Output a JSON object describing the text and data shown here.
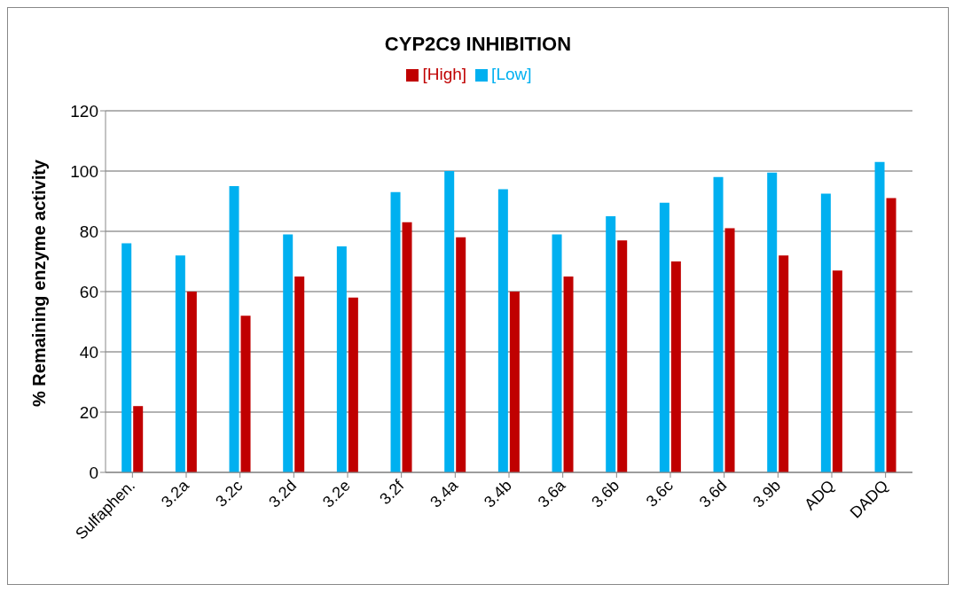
{
  "chart_data": {
    "type": "bar",
    "title": "CYP2C9 INHIBITION",
    "ylabel": "% Remaining enzyme activity",
    "categories": [
      "Sulfaphen.",
      "3.2a",
      "3.2c",
      "3.2d",
      "3.2e",
      "3.2f",
      "3.4a",
      "3.4b",
      "3.6a",
      "3.6b",
      "3.6c",
      "3.6d",
      "3.9b",
      "ADQ",
      "DADQ"
    ],
    "series": [
      {
        "name": "[Low]",
        "color": "#00b0f0",
        "values": [
          76,
          72,
          95,
          79,
          75,
          93,
          100,
          94,
          79,
          85,
          89.5,
          98,
          99.5,
          92.5,
          103
        ]
      },
      {
        "name": "[High]",
        "color": "#c00000",
        "values": [
          22,
          60,
          52,
          65,
          58,
          83,
          78,
          60,
          65,
          77,
          70,
          81,
          72,
          67,
          91
        ]
      }
    ],
    "ylim": [
      0,
      120
    ],
    "yticks": [
      0,
      20,
      40,
      60,
      80,
      100,
      120
    ],
    "grid": "y",
    "legend": "top"
  }
}
